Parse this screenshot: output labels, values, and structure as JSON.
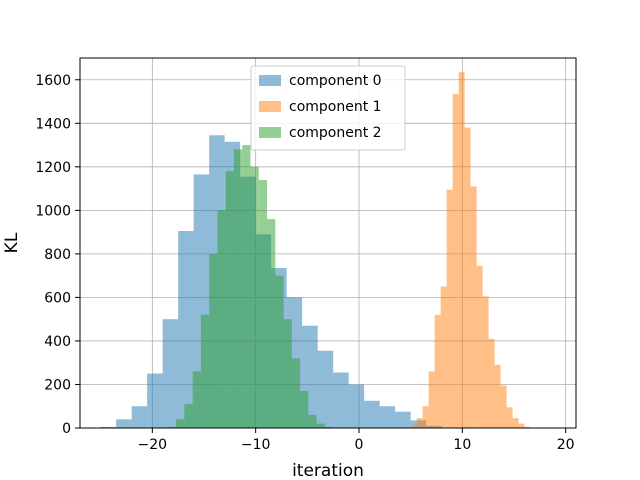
{
  "chart_data": {
    "type": "histogram",
    "xlabel": "iteration",
    "ylabel": "KL",
    "xlim": [
      -27,
      21
    ],
    "ylim": [
      0,
      1700
    ],
    "xticks": [
      -20,
      -10,
      0,
      10,
      20
    ],
    "xtick_labels": [
      "−20",
      "−10",
      "0",
      "10",
      "20"
    ],
    "yticks": [
      0,
      200,
      400,
      600,
      800,
      1000,
      1200,
      1400,
      1600
    ],
    "grid": true,
    "legend_position": "top-center",
    "alpha": 0.5,
    "series": [
      {
        "name": "component 0",
        "color": "#1f77b4",
        "bin_width": 1.5,
        "bins_start": -25.0,
        "counts": [
          5,
          40,
          100,
          250,
          500,
          905,
          1165,
          1345,
          1315,
          1155,
          890,
          735,
          600,
          470,
          355,
          255,
          200,
          125,
          100,
          75,
          35,
          10
        ]
      },
      {
        "name": "component 1",
        "color": "#ff7f0e",
        "bin_width": 0.58,
        "bins_start": 5.0,
        "counts": [
          10,
          45,
          100,
          260,
          520,
          650,
          1095,
          1535,
          1635,
          1380,
          1110,
          745,
          605,
          410,
          290,
          195,
          95,
          45,
          20,
          5
        ]
      },
      {
        "name": "component 2",
        "color": "#2ca02c",
        "bin_width": 0.8,
        "bins_start": -18.5,
        "counts": [
          5,
          40,
          110,
          260,
          520,
          800,
          1000,
          1180,
          1280,
          1300,
          1200,
          1140,
          960,
          700,
          500,
          320,
          170,
          60,
          20,
          5
        ]
      }
    ]
  }
}
